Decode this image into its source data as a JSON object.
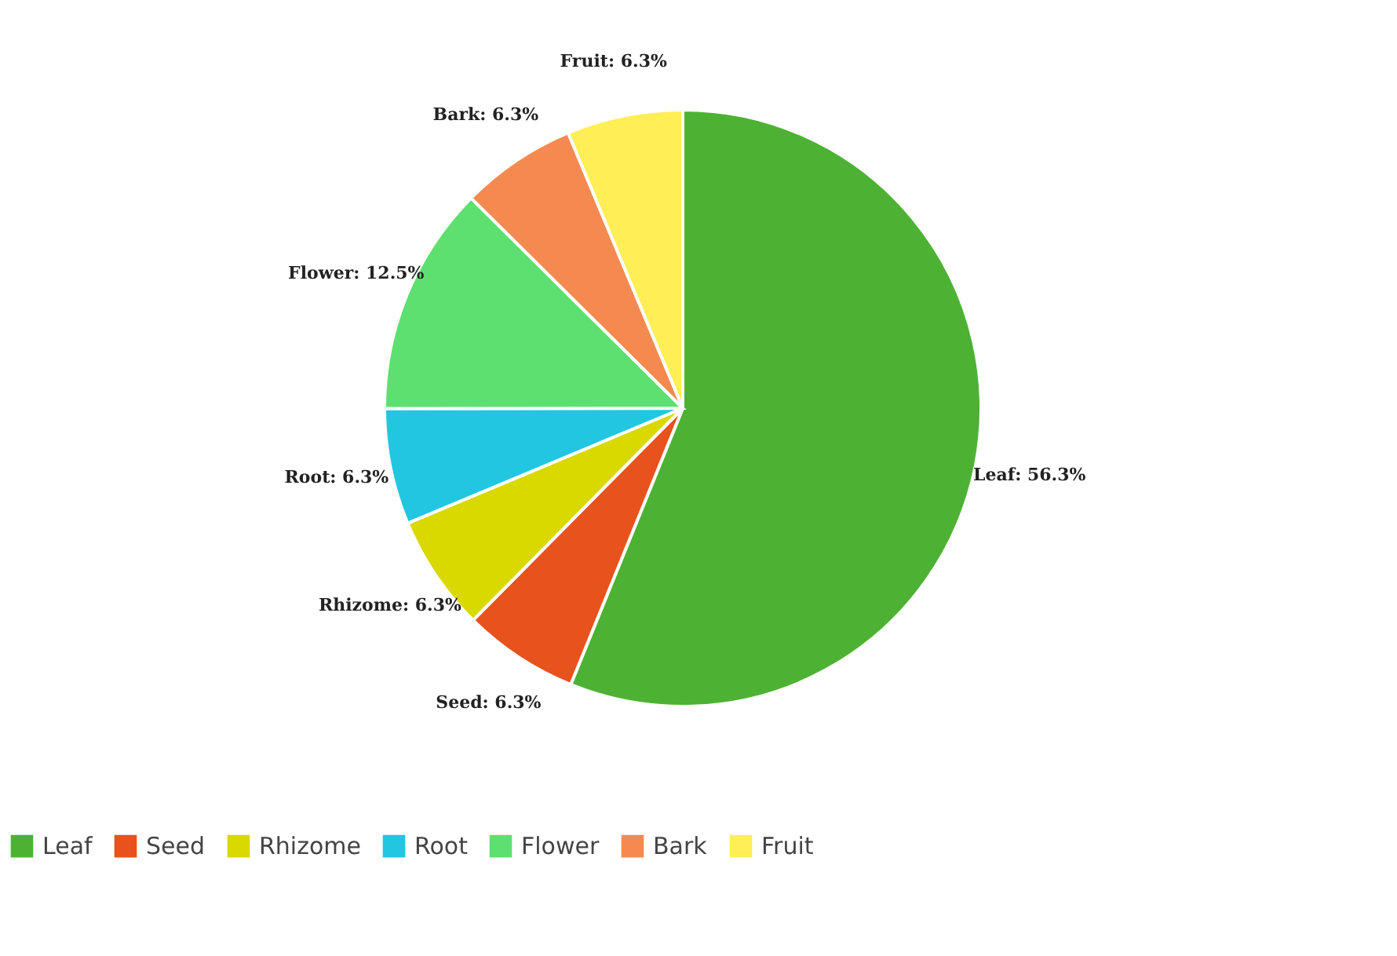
{
  "chart_data": {
    "type": "pie",
    "categories": [
      "Leaf",
      "Seed",
      "Rhizome",
      "Root",
      "Flower",
      "Bark",
      "Fruit"
    ],
    "values": [
      56.3,
      6.3,
      6.3,
      6.3,
      12.5,
      6.3,
      6.3
    ],
    "colors": [
      "#4db233",
      "#e8521c",
      "#d9d900",
      "#22c6e0",
      "#5de070",
      "#f58a50",
      "#ffee55"
    ],
    "value_labels": [
      "Leaf: 56.3%",
      "Seed: 6.3%",
      "Rhizome: 6.3%",
      "Root: 6.3%",
      "Flower: 12.5%",
      "Bark: 6.3%",
      "Fruit: 6.3%"
    ],
    "legend": "bottom"
  }
}
